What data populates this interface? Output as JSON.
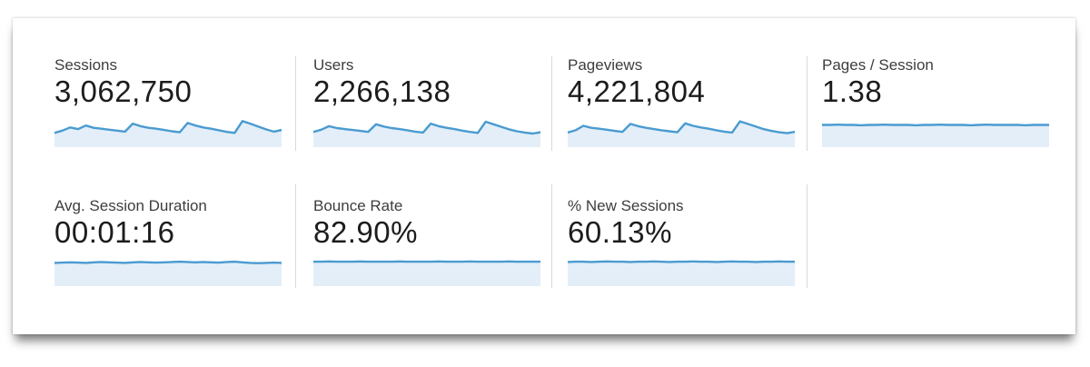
{
  "colors": {
    "spark_line": "#4a9bd1",
    "spark_fill": "#e3eef8",
    "divider": "#d9d9d9",
    "card_background": "#ffffff"
  },
  "metrics": [
    {
      "label": "Sessions",
      "value": "3,062,750",
      "spark": [
        0.45,
        0.52,
        0.62,
        0.57,
        0.68,
        0.61,
        0.58,
        0.55,
        0.52,
        0.49,
        0.74,
        0.66,
        0.61,
        0.58,
        0.54,
        0.5,
        0.47,
        0.76,
        0.68,
        0.62,
        0.58,
        0.53,
        0.48,
        0.45,
        0.82,
        0.74,
        0.65,
        0.56,
        0.49,
        0.54
      ]
    },
    {
      "label": "Users",
      "value": "2,266,138",
      "spark": [
        0.48,
        0.55,
        0.66,
        0.6,
        0.57,
        0.54,
        0.51,
        0.48,
        0.72,
        0.65,
        0.6,
        0.57,
        0.53,
        0.49,
        0.46,
        0.74,
        0.66,
        0.61,
        0.57,
        0.52,
        0.48,
        0.45,
        0.8,
        0.72,
        0.64,
        0.56,
        0.5,
        0.46,
        0.43,
        0.47
      ]
    },
    {
      "label": "Pageviews",
      "value": "4,221,804",
      "spark": [
        0.46,
        0.53,
        0.67,
        0.61,
        0.58,
        0.55,
        0.51,
        0.48,
        0.73,
        0.66,
        0.61,
        0.57,
        0.53,
        0.5,
        0.47,
        0.75,
        0.67,
        0.62,
        0.58,
        0.53,
        0.49,
        0.46,
        0.81,
        0.73,
        0.65,
        0.57,
        0.51,
        0.47,
        0.44,
        0.48
      ]
    },
    {
      "label": "Pages / Session",
      "value": "1.38",
      "spark": [
        0.7,
        0.7,
        0.71,
        0.7,
        0.7,
        0.69,
        0.7,
        0.7,
        0.71,
        0.7,
        0.7,
        0.7,
        0.69,
        0.7,
        0.7,
        0.71,
        0.7,
        0.7,
        0.7,
        0.69,
        0.7,
        0.71,
        0.7,
        0.7,
        0.7,
        0.7,
        0.69,
        0.7,
        0.7,
        0.7
      ]
    },
    {
      "label": "Avg. Session Duration",
      "value": "00:01:16",
      "spark": [
        0.8,
        0.81,
        0.82,
        0.81,
        0.8,
        0.82,
        0.83,
        0.82,
        0.81,
        0.8,
        0.82,
        0.83,
        0.82,
        0.81,
        0.82,
        0.83,
        0.84,
        0.83,
        0.82,
        0.83,
        0.82,
        0.81,
        0.83,
        0.84,
        0.82,
        0.8,
        0.79,
        0.8,
        0.81,
        0.8
      ]
    },
    {
      "label": "Bounce Rate",
      "value": "82.90%",
      "spark": [
        0.84,
        0.84,
        0.85,
        0.84,
        0.84,
        0.84,
        0.85,
        0.84,
        0.84,
        0.84,
        0.84,
        0.85,
        0.84,
        0.84,
        0.84,
        0.84,
        0.85,
        0.84,
        0.84,
        0.84,
        0.85,
        0.84,
        0.84,
        0.84,
        0.84,
        0.85,
        0.84,
        0.84,
        0.84,
        0.84
      ]
    },
    {
      "label": "% New Sessions",
      "value": "60.13%",
      "spark": [
        0.83,
        0.84,
        0.84,
        0.83,
        0.84,
        0.85,
        0.84,
        0.84,
        0.83,
        0.84,
        0.84,
        0.85,
        0.84,
        0.83,
        0.84,
        0.84,
        0.85,
        0.84,
        0.84,
        0.83,
        0.84,
        0.85,
        0.84,
        0.84,
        0.83,
        0.84,
        0.84,
        0.85,
        0.84,
        0.84
      ]
    }
  ]
}
